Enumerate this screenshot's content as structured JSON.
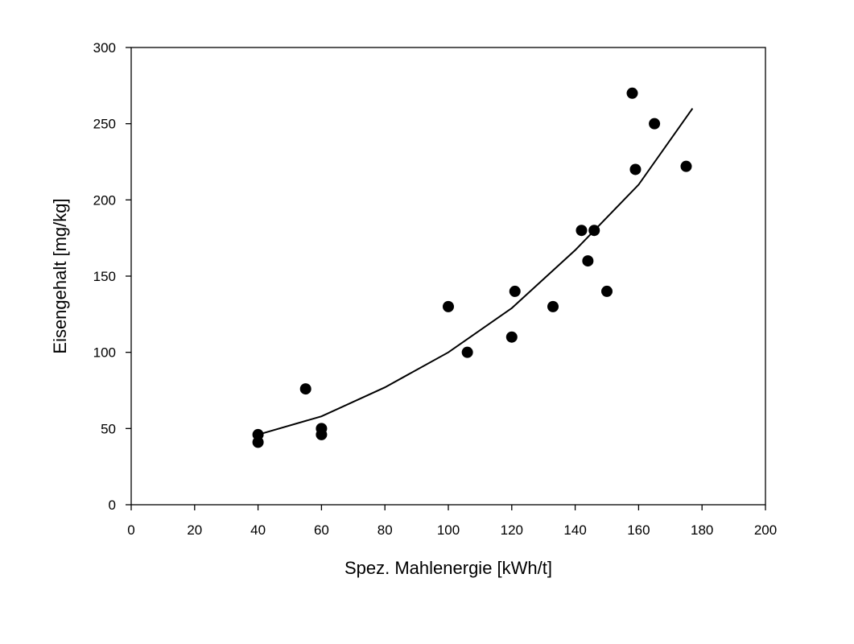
{
  "chart_data": {
    "type": "scatter",
    "title": "",
    "xlabel": "Spez. Mahlenergie [kWh/t]",
    "ylabel": "Eisengehalt [mg/kg]",
    "xlim": [
      0,
      200
    ],
    "ylim": [
      0,
      300
    ],
    "x_ticks": [
      0,
      20,
      40,
      60,
      80,
      100,
      120,
      140,
      160,
      180,
      200
    ],
    "y_ticks": [
      0,
      50,
      100,
      150,
      200,
      250,
      300
    ],
    "grid": false,
    "legend": "none",
    "series": [
      {
        "type": "scatter",
        "color": "#000000",
        "points": [
          {
            "x": 40,
            "y": 46
          },
          {
            "x": 40,
            "y": 41
          },
          {
            "x": 55,
            "y": 76
          },
          {
            "x": 60,
            "y": 50
          },
          {
            "x": 60,
            "y": 46
          },
          {
            "x": 100,
            "y": 130
          },
          {
            "x": 106,
            "y": 100
          },
          {
            "x": 120,
            "y": 110
          },
          {
            "x": 121,
            "y": 140
          },
          {
            "x": 133,
            "y": 130
          },
          {
            "x": 142,
            "y": 180
          },
          {
            "x": 144,
            "y": 160
          },
          {
            "x": 146,
            "y": 180
          },
          {
            "x": 150,
            "y": 140
          },
          {
            "x": 158,
            "y": 270
          },
          {
            "x": 159,
            "y": 220
          },
          {
            "x": 165,
            "y": 250
          },
          {
            "x": 175,
            "y": 222
          }
        ]
      },
      {
        "type": "line",
        "color": "#000000",
        "points": [
          {
            "x": 40,
            "y": 46
          },
          {
            "x": 60,
            "y": 58
          },
          {
            "x": 80,
            "y": 77
          },
          {
            "x": 100,
            "y": 100
          },
          {
            "x": 120,
            "y": 129
          },
          {
            "x": 140,
            "y": 167
          },
          {
            "x": 160,
            "y": 210
          },
          {
            "x": 177,
            "y": 260
          }
        ]
      }
    ]
  }
}
